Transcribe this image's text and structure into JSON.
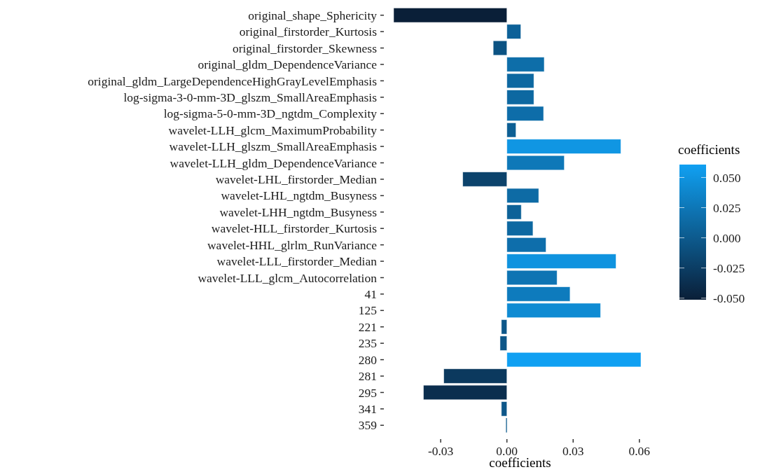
{
  "chart_data": {
    "type": "bar",
    "orientation": "horizontal",
    "xlabel": "coefficients",
    "clabel": "coefficients",
    "categories": [
      "original_shape_Sphericity",
      "original_firstorder_Kurtosis",
      "original_firstorder_Skewness",
      "original_gldm_DependenceVariance",
      "original_gldm_LargeDependenceHighGrayLevelEmphasis",
      "log-sigma-3-0-mm-3D_glszm_SmallAreaEmphasis",
      "log-sigma-5-0-mm-3D_ngtdm_Complexity",
      "wavelet-LLH_glcm_MaximumProbability",
      "wavelet-LLH_glszm_SmallAreaEmphasis",
      "wavelet-LLH_gldm_DependenceVariance",
      "wavelet-LHL_firstorder_Median",
      "wavelet-LHL_ngtdm_Busyness",
      "wavelet-LHH_ngtdm_Busyness",
      "wavelet-HLL_firstorder_Kurtosis",
      "wavelet-HHL_glrlm_RunVariance",
      "wavelet-LLL_firstorder_Median",
      "wavelet-LLL_glcm_Autocorrelation",
      "41",
      "125",
      "221",
      "235",
      "280",
      "281",
      "295",
      "341",
      "359"
    ],
    "values": [
      -0.0513,
      0.0063,
      -0.0062,
      0.0169,
      0.0122,
      0.0122,
      0.0166,
      0.0041,
      0.0516,
      0.026,
      -0.02,
      0.0144,
      0.0065,
      0.0118,
      0.0177,
      0.0494,
      0.0227,
      0.0286,
      0.0424,
      -0.0025,
      -0.0031,
      0.0607,
      -0.0286,
      -0.0378,
      -0.0025,
      -0.0004
    ],
    "colors": [
      "#0a1f38",
      "#0d6198",
      "#0c5383",
      "#0e6ea9",
      "#0d68a1",
      "#0d68a1",
      "#0e6da9",
      "#0d5f94",
      "#1096e3",
      "#0e78b8",
      "#0c436c",
      "#0e6ba5",
      "#0d6298",
      "#0d68a1",
      "#0e6eab",
      "#0f93df",
      "#0e74b3",
      "#0e7bbd",
      "#0f8bd3",
      "#0d5789",
      "#0d5688",
      "#10a0f2",
      "#0b395e",
      "#0b2e4e",
      "#0d5789",
      "#0d5a8d"
    ],
    "xlim": [
      -0.0513,
      0.0607
    ],
    "xticks": [
      {
        "value": -0.03,
        "label": "-0.03"
      },
      {
        "value": 0,
        "label": "0.00"
      },
      {
        "value": 0.03,
        "label": "0.03"
      },
      {
        "value": 0.06,
        "label": "0.06"
      }
    ],
    "clim": [
      -0.0513,
      0.0607
    ],
    "cticks": [
      {
        "value": -0.05,
        "label": "-0.050"
      },
      {
        "value": -0.025,
        "label": "-0.025"
      },
      {
        "value": 0,
        "label": "0.000"
      },
      {
        "value": 0.025,
        "label": "0.025"
      },
      {
        "value": 0.05,
        "label": "0.050"
      }
    ],
    "grid": false
  }
}
